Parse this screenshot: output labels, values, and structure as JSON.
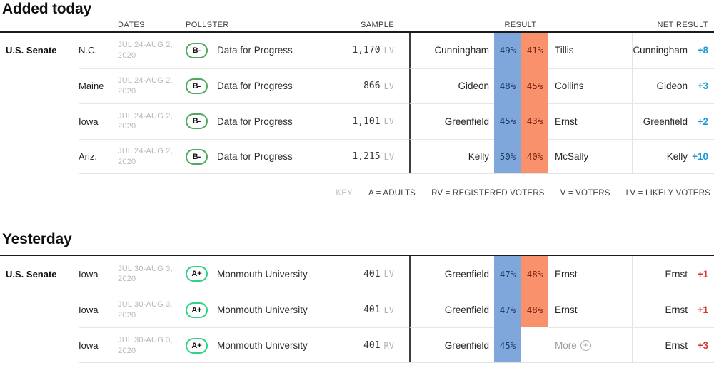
{
  "colors": {
    "dem_box": "#7fa7db",
    "gop_box": "#f9916c",
    "dem_box_text": "#1d3c5e",
    "gop_box_text": "#7e2310",
    "net_dem_text": "#1e9ad3",
    "net_gop_text": "#d6352b",
    "grade_b_ring": "#4fa95c",
    "grade_a_ring": "#2fd287"
  },
  "columns": {
    "dates": "DATES",
    "pollster": "POLLSTER",
    "sample": "SAMPLE",
    "result": "RESULT",
    "net_result": "NET RESULT"
  },
  "key": {
    "label": "KEY",
    "items": [
      "A = ADULTS",
      "RV = REGISTERED VOTERS",
      "V = VOTERS",
      "LV = LIKELY VOTERS"
    ]
  },
  "added": {
    "title": "Added today",
    "race": "U.S. Senate",
    "rows": [
      {
        "state": "N.C.",
        "dates": "JUL 24-AUG 2, 2020",
        "grade": "B-",
        "pollster": "Data for Progress",
        "sample_n": "1,170",
        "sample_type": "LV",
        "dem_name": "Cunningham",
        "dem_pct": "49%",
        "gop_pct": "41%",
        "gop_name": "Tillis",
        "net_name": "Cunningham",
        "net_value": "+8"
      },
      {
        "state": "Maine",
        "dates": "JUL 24-AUG 2, 2020",
        "grade": "B-",
        "pollster": "Data for Progress",
        "sample_n": "866",
        "sample_type": "LV",
        "dem_name": "Gideon",
        "dem_pct": "48%",
        "gop_pct": "45%",
        "gop_name": "Collins",
        "net_name": "Gideon",
        "net_value": "+3"
      },
      {
        "state": "Iowa",
        "dates": "JUL 24-AUG 2, 2020",
        "grade": "B-",
        "pollster": "Data for Progress",
        "sample_n": "1,101",
        "sample_type": "LV",
        "dem_name": "Greenfield",
        "dem_pct": "45%",
        "gop_pct": "43%",
        "gop_name": "Ernst",
        "net_name": "Greenfield",
        "net_value": "+2"
      },
      {
        "state": "Ariz.",
        "dates": "JUL 24-AUG 2, 2020",
        "grade": "B-",
        "pollster": "Data for Progress",
        "sample_n": "1,215",
        "sample_type": "LV",
        "dem_name": "Kelly",
        "dem_pct": "50%",
        "gop_pct": "40%",
        "gop_name": "McSally",
        "net_name": "Kelly",
        "net_value": "+10"
      }
    ]
  },
  "yesterday": {
    "title": "Yesterday",
    "race": "U.S. Senate",
    "rows": [
      {
        "state": "Iowa",
        "dates": "JUL 30-AUG 3, 2020",
        "grade": "A+",
        "pollster": "Monmouth University",
        "sample_n": "401",
        "sample_type": "LV",
        "dem_name": "Greenfield",
        "dem_pct": "47%",
        "gop_pct": "48%",
        "gop_name": "Ernst",
        "net_name": "Ernst",
        "net_value": "+1"
      },
      {
        "state": "Iowa",
        "dates": "JUL 30-AUG 3, 2020",
        "grade": "A+",
        "pollster": "Monmouth University",
        "sample_n": "401",
        "sample_type": "LV",
        "dem_name": "Greenfield",
        "dem_pct": "47%",
        "gop_pct": "48%",
        "gop_name": "Ernst",
        "net_name": "Ernst",
        "net_value": "+1"
      },
      {
        "state": "Iowa",
        "dates": "JUL 30-AUG 3, 2020",
        "grade": "A+",
        "pollster": "Monmouth University",
        "sample_n": "401",
        "sample_type": "RV",
        "dem_name": "Greenfield",
        "dem_pct": "45%",
        "more_label": "More",
        "net_name": "Ernst",
        "net_value": "+3"
      }
    ]
  }
}
